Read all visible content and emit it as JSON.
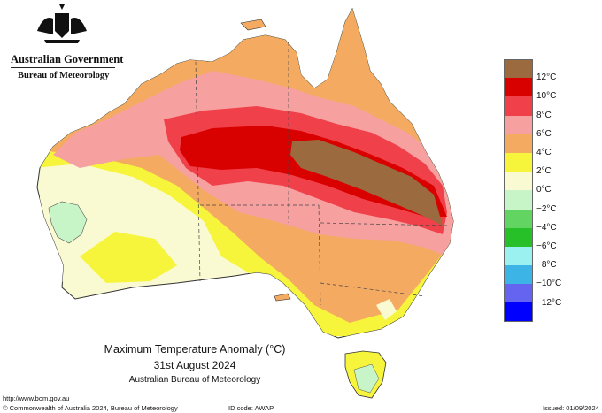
{
  "header": {
    "government": "Australian Government",
    "bureau": "Bureau of Meteorology"
  },
  "legend": {
    "items": [
      {
        "label": "12°C",
        "color": "#9b6a3e"
      },
      {
        "label": "10°C",
        "color": "#d90000"
      },
      {
        "label": "8°C",
        "color": "#f0414b"
      },
      {
        "label": "6°C",
        "color": "#f7a0a0"
      },
      {
        "label": "4°C",
        "color": "#f5aa62"
      },
      {
        "label": "2°C",
        "color": "#f6f53c"
      },
      {
        "label": "0°C",
        "color": "#fafad2"
      },
      {
        "label": "−2°C",
        "color": "#c8f5c8"
      },
      {
        "label": "−4°C",
        "color": "#62d462"
      },
      {
        "label": "−6°C",
        "color": "#28c028"
      },
      {
        "label": "−8°C",
        "color": "#9bf0f0"
      },
      {
        "label": "−10°C",
        "color": "#3cb4e6"
      },
      {
        "label": "−12°C",
        "color": "#6464f0"
      },
      {
        "label": "",
        "color": "#0000ff"
      }
    ]
  },
  "map": {
    "title": "Maximum Temperature Anomaly (°C)",
    "date": "31st August 2024",
    "source": "Australian Bureau of Meteorology"
  },
  "footer": {
    "url": "http://www.bom.gov.au",
    "copyright": "© Commonwealth of Australia 2024, Bureau of Meteorology",
    "id_code": "ID code: AWAP",
    "issued": "Issued: 01/09/2024"
  }
}
